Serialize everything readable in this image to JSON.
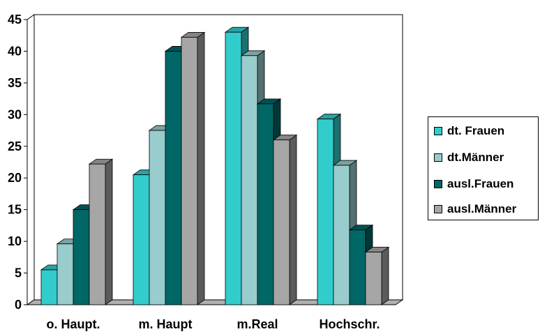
{
  "chart_data": {
    "type": "bar",
    "title": "",
    "xlabel": "",
    "ylabel": "",
    "categories": [
      "o. Haupt.",
      "m. Haupt",
      "m.Real",
      "Hochschr."
    ],
    "series": [
      {
        "name": "dt. Frauen",
        "values": [
          5.5,
          20.5,
          43,
          29.3
        ],
        "color": "#33CCCC"
      },
      {
        "name": "dt.Männer",
        "values": [
          9.6,
          27.5,
          39.3,
          22
        ],
        "color": "#99CCCC"
      },
      {
        "name": "ausl.Frauen",
        "values": [
          15,
          40,
          31.7,
          11.8
        ],
        "color": "#006666"
      },
      {
        "name": "ausl.Männer",
        "values": [
          22.2,
          42.2,
          26,
          8.3
        ],
        "color": "#A6A6A6"
      }
    ],
    "ylim": [
      0,
      45
    ],
    "yticks": [
      "0",
      "5",
      "10",
      "15",
      "20",
      "25",
      "30",
      "35",
      "40",
      "45"
    ],
    "grid": true,
    "style": "3d-column",
    "legend_position": "right"
  }
}
